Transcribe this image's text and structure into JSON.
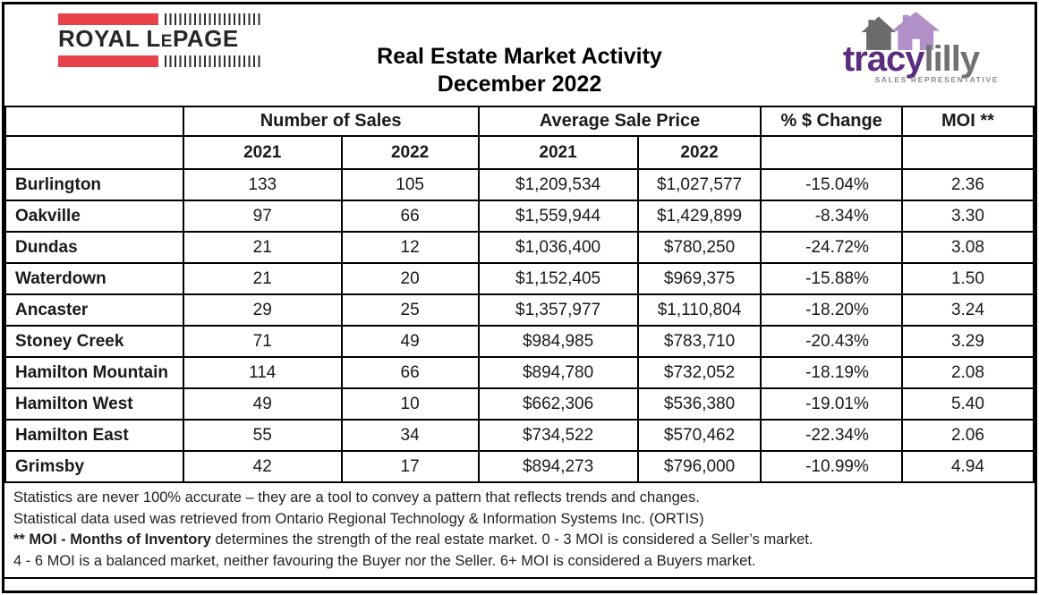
{
  "brands": {
    "royal_lepage": {
      "part1": "ROYAL L",
      "part2": "E",
      "part3": "PAGE"
    },
    "tracy_lilly": {
      "first_name": "tracy",
      "last_name": "lilly",
      "tagline": "SALES REPRESENTATIVE"
    }
  },
  "header": {
    "title_line1": "Real Estate Market Activity",
    "title_line2": "December 2022"
  },
  "table": {
    "group_headers": {
      "sales": "Number of Sales",
      "price": "Average Sale Price",
      "change": "% $ Change",
      "moi": "MOI **"
    },
    "year_headers": [
      "2021",
      "2022",
      "2021",
      "2022"
    ],
    "rows": [
      {
        "region": "Burlington",
        "sales_2021": "133",
        "sales_2022": "105",
        "price_2021": "$1,209,534",
        "price_2022": "$1,027,577",
        "pct_change": "-15.04%",
        "moi": "2.36"
      },
      {
        "region": "Oakville",
        "sales_2021": "97",
        "sales_2022": "66",
        "price_2021": "$1,559,944",
        "price_2022": "$1,429,899",
        "pct_change": "-8.34%",
        "moi": "3.30"
      },
      {
        "region": "Dundas",
        "sales_2021": "21",
        "sales_2022": "12",
        "price_2021": "$1,036,400",
        "price_2022": "$780,250",
        "pct_change": "-24.72%",
        "moi": "3.08"
      },
      {
        "region": "Waterdown",
        "sales_2021": "21",
        "sales_2022": "20",
        "price_2021": "$1,152,405",
        "price_2022": "$969,375",
        "pct_change": "-15.88%",
        "moi": "1.50"
      },
      {
        "region": "Ancaster",
        "sales_2021": "29",
        "sales_2022": "25",
        "price_2021": "$1,357,977",
        "price_2022": "$1,110,804",
        "pct_change": "-18.20%",
        "moi": "3.24"
      },
      {
        "region": "Stoney Creek",
        "sales_2021": "71",
        "sales_2022": "49",
        "price_2021": "$984,985",
        "price_2022": "$783,710",
        "pct_change": "-20.43%",
        "moi": "3.29"
      },
      {
        "region": "Hamilton Mountain",
        "sales_2021": "114",
        "sales_2022": "66",
        "price_2021": "$894,780",
        "price_2022": "$732,052",
        "pct_change": "-18.19%",
        "moi": "2.08"
      },
      {
        "region": "Hamilton West",
        "sales_2021": "49",
        "sales_2022": "10",
        "price_2021": "$662,306",
        "price_2022": "$536,380",
        "pct_change": "-19.01%",
        "moi": "5.40"
      },
      {
        "region": "Hamilton East",
        "sales_2021": "55",
        "sales_2022": "34",
        "price_2021": "$734,522",
        "price_2022": "$570,462",
        "pct_change": "-22.34%",
        "moi": "2.06"
      },
      {
        "region": "Grimsby",
        "sales_2021": "42",
        "sales_2022": "17",
        "price_2021": "$894,273",
        "price_2022": "$796,000",
        "pct_change": "-10.99%",
        "moi": "4.94"
      }
    ]
  },
  "footnotes": {
    "line1": "Statistics are never 100% accurate – they are a tool to convey a pattern that reflects trends and changes.",
    "line2": "Statistical data used was retrieved from Ontario Regional Technology & Information Systems Inc. (ORTIS)",
    "line3_bold": "** MOI - Months of Inventory",
    "line3_rest": " determines the strength of the real estate market. 0 - 3 MOI is considered a Seller’s market.",
    "line4": "4 - 6 MOI is a balanced market, neither favouring the Buyer nor the Seller. 6+ MOI is considered a Buyers market."
  },
  "colors": {
    "rlp_red": "#e8414a",
    "tracy_purple": "#5b2d7e",
    "lilly_gray": "#717173",
    "house_gray": "#6c6a6b",
    "house_purple": "#b18fc7"
  }
}
